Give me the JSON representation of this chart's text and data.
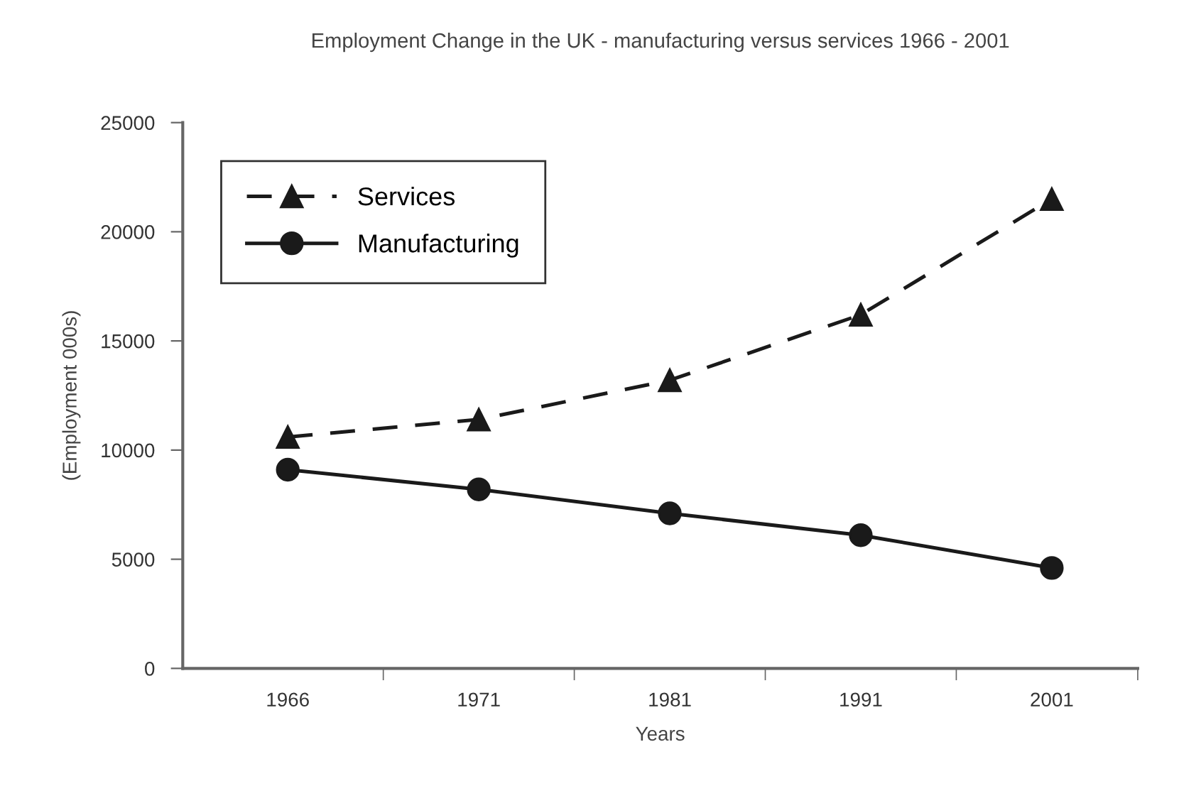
{
  "chart_data": {
    "type": "line",
    "title": "Employment Change in the UK - manufacturing versus services 1966 - 2001",
    "xlabel": "Years",
    "ylabel": "(Employment 000s)",
    "categories": [
      "1966",
      "1971",
      "1981",
      "1991",
      "2001"
    ],
    "series": [
      {
        "name": "Services",
        "color": "#1a1a1a",
        "values": [
          10600,
          11400,
          13200,
          16200,
          21500
        ],
        "marker": "triangle",
        "line_style": "dashed"
      },
      {
        "name": "Manufacturing",
        "color": "#1a1a1a",
        "values": [
          9100,
          8200,
          7100,
          6100,
          4600
        ],
        "marker": "circle",
        "line_style": "solid"
      }
    ],
    "ylim": [
      0,
      25000
    ],
    "yticks": [
      0,
      5000,
      10000,
      15000,
      20000,
      25000
    ],
    "grid": false,
    "legend": "top left"
  }
}
